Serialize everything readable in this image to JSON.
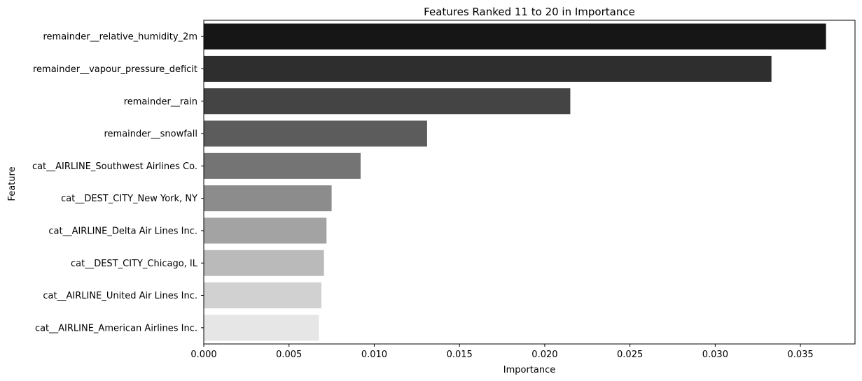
{
  "chart_data": {
    "type": "bar",
    "orientation": "horizontal",
    "title": "Features Ranked 11 to 20 in Importance",
    "xlabel": "Importance",
    "ylabel": "Feature",
    "xlim": [
      0,
      0.0382
    ],
    "xticks": [
      0.0,
      0.005,
      0.01,
      0.015,
      0.02,
      0.025,
      0.03,
      0.035
    ],
    "xtick_labels": [
      "0.000",
      "0.005",
      "0.010",
      "0.015",
      "0.020",
      "0.025",
      "0.030",
      "0.035"
    ],
    "grid": false,
    "categories": [
      "remainder__relative_humidity_2m",
      "remainder__vapour_pressure_deficit",
      "remainder__rain",
      "remainder__snowfall",
      "cat__AIRLINE_Southwest Airlines Co.",
      "cat__DEST_CITY_New York, NY",
      "cat__AIRLINE_Delta Air Lines Inc.",
      "cat__DEST_CITY_Chicago, IL",
      "cat__AIRLINE_United Air Lines Inc.",
      "cat__AIRLINE_American Airlines Inc."
    ],
    "values": [
      0.0365,
      0.0333,
      0.0215,
      0.0131,
      0.0092,
      0.0075,
      0.0072,
      0.00705,
      0.0069,
      0.00675
    ],
    "colors": [
      "#161616",
      "#2e2e2e",
      "#444444",
      "#5c5c5c",
      "#747474",
      "#8c8c8c",
      "#a3a3a3",
      "#bababa",
      "#d1d1d1",
      "#e6e6e6"
    ]
  }
}
